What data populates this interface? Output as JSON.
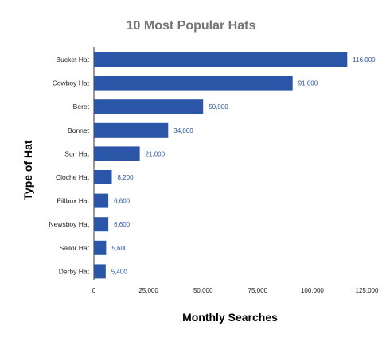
{
  "chart_data": {
    "type": "bar",
    "orientation": "horizontal",
    "title": "10 Most Popular Hats",
    "xlabel": "Monthly Searches",
    "ylabel": "Type of Hat",
    "categories": [
      "Bucket Hat",
      "Cowboy Hat",
      "Beret",
      "Bonnet",
      "Sun Hat",
      "Cloche Hat",
      "Pillbox Hat",
      "Newsboy Hat",
      "Sailor Hat",
      "Derby Hat"
    ],
    "values": [
      116000,
      91000,
      50000,
      34000,
      21000,
      8200,
      6600,
      6600,
      5600,
      5400
    ],
    "value_labels": [
      "116,000",
      "91,000",
      "50,000",
      "34,000",
      "21,000",
      "8,200",
      "6,600",
      "6,600",
      "5,600",
      "5,400"
    ],
    "xlim": [
      0,
      125000
    ],
    "x_ticks": [
      0,
      25000,
      50000,
      75000,
      100000,
      125000
    ],
    "x_tick_labels": [
      "0",
      "25,000",
      "50,000",
      "75,000",
      "100,000",
      "125,000"
    ],
    "grid": false,
    "legend": "none",
    "bar_color": "#2b56a8",
    "label_color": "#2b56a8"
  }
}
